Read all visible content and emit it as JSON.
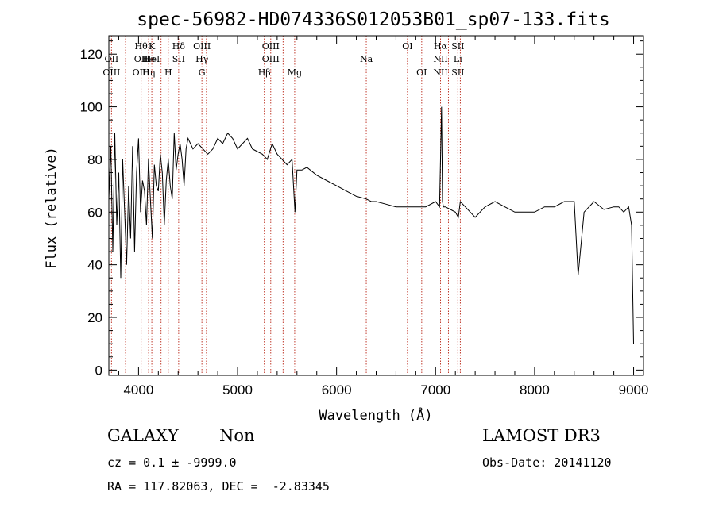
{
  "chart_data": {
    "type": "line",
    "title": "spec-56982-HD074336S012053B01_sp07-133.fits",
    "xlabel": "Wavelength (Å)",
    "ylabel": "Flux (relative)",
    "xlim": [
      3700,
      9100
    ],
    "ylim": [
      -2,
      127
    ],
    "x_ticks": [
      4000,
      5000,
      6000,
      7000,
      8000,
      9000
    ],
    "y_ticks": [
      0,
      20,
      40,
      60,
      80,
      100,
      120
    ],
    "grid": false,
    "series": [
      {
        "x": [
          3700,
          3720,
          3740,
          3760,
          3780,
          3800,
          3820,
          3840,
          3860,
          3880,
          3900,
          3920,
          3940,
          3960,
          3980,
          4000,
          4020,
          4040,
          4060,
          4080,
          4100,
          4120,
          4140,
          4160,
          4180,
          4200,
          4220,
          4240,
          4260,
          4280,
          4300,
          4320,
          4340,
          4360,
          4380,
          4400,
          4420,
          4440,
          4460,
          4480,
          4500,
          4550,
          4600,
          4650,
          4700,
          4750,
          4800,
          4850,
          4900,
          4950,
          5000,
          5050,
          5100,
          5150,
          5200,
          5250,
          5300,
          5350,
          5400,
          5450,
          5500,
          5550,
          5580,
          5600,
          5650,
          5700,
          5800,
          5900,
          6000,
          6100,
          6200,
          6300,
          6350,
          6400,
          6500,
          6600,
          6700,
          6800,
          6900,
          7000,
          7040,
          7060,
          7070,
          7080,
          7100,
          7150,
          7200,
          7230,
          7250,
          7300,
          7400,
          7500,
          7600,
          7700,
          7800,
          7900,
          8000,
          8100,
          8200,
          8300,
          8400,
          8440,
          8500,
          8600,
          8700,
          8800,
          8850,
          8900,
          8950,
          8980,
          9000
        ],
        "y": [
          65,
          85,
          45,
          90,
          55,
          75,
          35,
          80,
          60,
          40,
          70,
          50,
          85,
          45,
          75,
          88,
          60,
          72,
          68,
          55,
          80,
          65,
          50,
          78,
          70,
          68,
          82,
          75,
          55,
          72,
          80,
          70,
          65,
          90,
          76,
          82,
          86,
          80,
          70,
          84,
          88,
          84,
          86,
          84,
          82,
          84,
          88,
          86,
          90,
          88,
          84,
          86,
          88,
          84,
          83,
          82,
          80,
          86,
          82,
          80,
          78,
          80,
          60,
          76,
          76,
          77,
          74,
          72,
          70,
          68,
          66,
          65,
          64,
          64,
          63,
          62,
          62,
          62,
          62,
          64,
          62,
          100,
          64,
          62,
          62,
          61,
          60,
          58,
          64,
          62,
          58,
          62,
          64,
          62,
          60,
          60,
          60,
          62,
          62,
          64,
          64,
          36,
          60,
          64,
          61,
          62,
          62,
          60,
          62,
          55,
          10
        ]
      }
    ],
    "lines": [
      {
        "x": 3727,
        "top": "",
        "mid": "OII",
        "bot": "OIII"
      },
      {
        "x": 3869,
        "top": "",
        "mid": "",
        "bot": ""
      },
      {
        "x": 4026,
        "top": "Hθ",
        "mid": "OII",
        "bot": "OIII"
      },
      {
        "x": 4102,
        "top": "",
        "mid": "He",
        "bot": "Hη"
      },
      {
        "x": 4134,
        "top": "K",
        "mid": "HeI",
        "bot": ""
      },
      {
        "x": 4227,
        "top": "",
        "mid": "",
        "bot": ""
      },
      {
        "x": 4300,
        "top": "",
        "mid": "",
        "bot": "H"
      },
      {
        "x": 4405,
        "top": "Hδ",
        "mid": "SII",
        "bot": ""
      },
      {
        "x": 4640,
        "top": "OIII",
        "mid": "Hγ",
        "bot": "G"
      },
      {
        "x": 4686,
        "top": "",
        "mid": "",
        "bot": ""
      },
      {
        "x": 5270,
        "top": "",
        "mid": "",
        "bot": "Hβ"
      },
      {
        "x": 5335,
        "top": "OIII",
        "mid": "OIII",
        "bot": ""
      },
      {
        "x": 5460,
        "top": "",
        "mid": "",
        "bot": ""
      },
      {
        "x": 5577,
        "top": "",
        "mid": "",
        "bot": "Mg"
      },
      {
        "x": 6300,
        "top": "",
        "mid": "Na",
        "bot": ""
      },
      {
        "x": 6716,
        "top": "OI",
        "mid": "",
        "bot": ""
      },
      {
        "x": 6860,
        "top": "",
        "mid": "",
        "bot": "OI"
      },
      {
        "x": 7050,
        "top": "Hα",
        "mid": "NII",
        "bot": "NII"
      },
      {
        "x": 7130,
        "top": "",
        "mid": "",
        "bot": ""
      },
      {
        "x": 7225,
        "top": "SII",
        "mid": "Li",
        "bot": "SII"
      },
      {
        "x": 7250,
        "top": "",
        "mid": "",
        "bot": ""
      }
    ]
  },
  "info": {
    "class": "GALAXY",
    "subclass": "Non",
    "survey": "LAMOST DR3",
    "cz": "cz = 0.1 ± -9999.0",
    "obs_date": "Obs-Date: 20141120",
    "radec": "RA = 117.82063, DEC =  -2.83345"
  }
}
